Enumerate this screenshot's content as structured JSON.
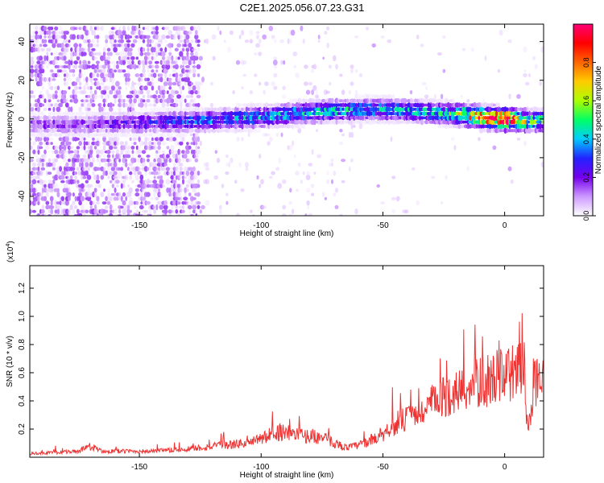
{
  "title": "C2E1.2025.056.07.23.G31",
  "chart_data": [
    {
      "type": "heatmap",
      "xlabel": "Height of straight line (km)",
      "ylabel": "Frequency (Hz)",
      "xlim": [
        -195,
        16
      ],
      "ylim": [
        -50,
        49
      ],
      "xticks": [
        -150,
        -100,
        -50,
        0
      ],
      "yticks": [
        -40,
        -20,
        0,
        20,
        40
      ],
      "grid": false,
      "colormap": {
        "label": "Normalized spectral amplitude",
        "range": [
          0,
          1
        ],
        "ticks": [
          0.0,
          0.2,
          0.4,
          0.6,
          0.8
        ],
        "stops": [
          "#ffffff",
          "#cc99ff",
          "#7700ee",
          "#2222ff",
          "#00ccff",
          "#00ff66",
          "#aaff00",
          "#ffcc00",
          "#ff6600",
          "#ff0000",
          "#ff0077"
        ]
      },
      "ridge": [
        {
          "x": -175,
          "freq": -3,
          "amp": 0.15
        },
        {
          "x": -150,
          "freq": -2,
          "amp": 0.22
        },
        {
          "x": -125,
          "freq": -1,
          "amp": 0.3
        },
        {
          "x": -100,
          "freq": 1,
          "amp": 0.35
        },
        {
          "x": -75,
          "freq": 4,
          "amp": 0.4
        },
        {
          "x": -50,
          "freq": 5,
          "amp": 0.35
        },
        {
          "x": -25,
          "freq": 3,
          "amp": 0.4
        },
        {
          "x": -10,
          "freq": 1,
          "amp": 0.75
        },
        {
          "x": 0,
          "freq": 0,
          "amp": 0.95
        },
        {
          "x": 10,
          "freq": -1,
          "amp": 0.5
        }
      ]
    },
    {
      "type": "line",
      "xlabel": "Height of straight line (km)",
      "ylabel": "SNR (10 * v/v)",
      "yscale_note": "(x10^4)",
      "xlim": [
        -195,
        16
      ],
      "ylim": [
        0,
        1.36
      ],
      "xticks": [
        -150,
        -100,
        -50,
        0
      ],
      "yticks": [
        0.2,
        0.4,
        0.6,
        0.8,
        1.0,
        1.2
      ],
      "grid": false,
      "series": [
        {
          "color": "#ee3333",
          "x": [
            -195,
            -185,
            -175,
            -170,
            -165,
            -155,
            -145,
            -135,
            -125,
            -115,
            -105,
            -100,
            -95,
            -90,
            -85,
            -80,
            -75,
            -70,
            -65,
            -60,
            -55,
            -50,
            -45,
            -40,
            -35,
            -30,
            -25,
            -20,
            -15,
            -10,
            -5,
            0,
            5,
            8,
            9,
            10,
            12,
            14,
            16
          ],
          "y": [
            0.03,
            0.04,
            0.05,
            0.09,
            0.05,
            0.05,
            0.05,
            0.06,
            0.08,
            0.1,
            0.12,
            0.15,
            0.2,
            0.22,
            0.18,
            0.18,
            0.16,
            0.12,
            0.08,
            0.1,
            0.14,
            0.2,
            0.28,
            0.32,
            0.35,
            0.45,
            0.5,
            0.55,
            0.58,
            0.62,
            0.66,
            0.68,
            0.72,
            0.75,
            0.3,
            0.25,
            0.6,
            0.7,
            0.66
          ]
        }
      ]
    }
  ]
}
